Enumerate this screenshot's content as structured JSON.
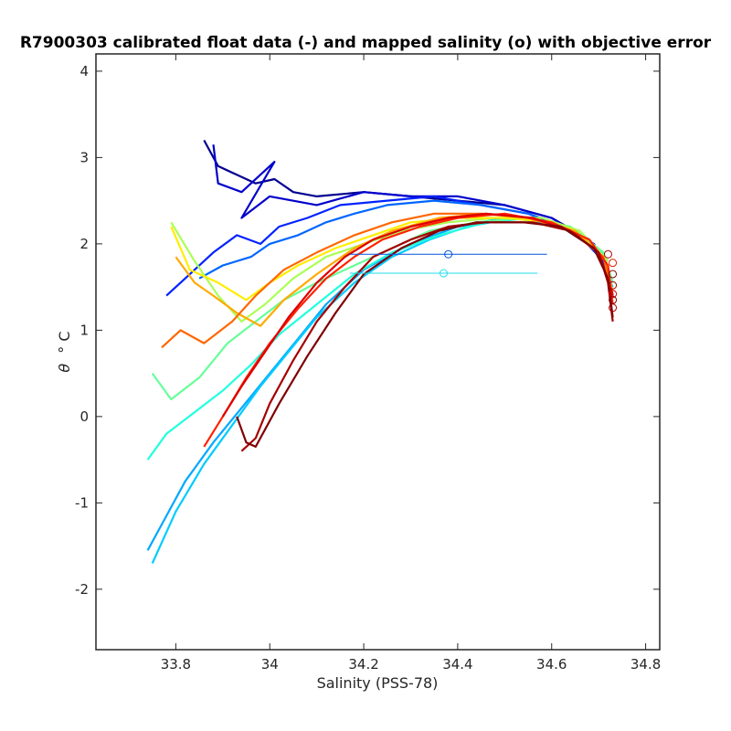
{
  "chart_data": {
    "type": "line",
    "title": "R7900303 calibrated float data (-) and mapped salinity (o) with objective error",
    "xlabel": "Salinity (PSS-78)",
    "ylabel_symbol": "θ",
    "ylabel_unit": "° C",
    "xlim": [
      33.63,
      34.83
    ],
    "ylim": [
      -2.7,
      4.2
    ],
    "x_ticks": [
      33.8,
      34,
      34.2,
      34.4,
      34.6,
      34.8
    ],
    "x_tick_labels": [
      "33.8",
      "34",
      "34.2",
      "34.4",
      "34.6",
      "34.8"
    ],
    "y_ticks": [
      -2,
      -1,
      0,
      1,
      2,
      3,
      4
    ],
    "y_tick_labels": [
      "-2",
      "-1",
      "0",
      "1",
      "2",
      "3",
      "4"
    ],
    "grid": false,
    "legend": "none",
    "colormap": "jet (profile index: blue = early, dark red = late)",
    "series": [
      {
        "color": "#00008f",
        "x": [
          33.86,
          33.87,
          33.89,
          33.93,
          33.97,
          34.01,
          34.05,
          34.1,
          34.2,
          34.3,
          34.4,
          34.5,
          34.6,
          34.68,
          34.72,
          34.73
        ],
        "y": [
          3.2,
          3.1,
          2.9,
          2.8,
          2.7,
          2.75,
          2.6,
          2.55,
          2.6,
          2.55,
          2.5,
          2.45,
          2.3,
          2.05,
          1.7,
          1.4
        ]
      },
      {
        "color": "#0000cc",
        "x": [
          33.88,
          33.89,
          33.94,
          34.01,
          33.94,
          34.0,
          34.1,
          34.2,
          34.3,
          34.4,
          34.5,
          34.6,
          34.69,
          34.72,
          34.73
        ],
        "y": [
          3.15,
          2.7,
          2.6,
          2.95,
          2.3,
          2.55,
          2.45,
          2.6,
          2.55,
          2.55,
          2.45,
          2.3,
          2.0,
          1.7,
          1.4
        ]
      },
      {
        "color": "#0022ff",
        "x": [
          33.78,
          33.82,
          33.88,
          33.93,
          33.98,
          34.02,
          34.08,
          34.15,
          34.25,
          34.35,
          34.45,
          34.55,
          34.65,
          34.71,
          34.73
        ],
        "y": [
          1.4,
          1.6,
          1.9,
          2.1,
          2.0,
          2.2,
          2.3,
          2.45,
          2.5,
          2.55,
          2.45,
          2.35,
          2.15,
          1.8,
          1.4
        ]
      },
      {
        "color": "#0066ff",
        "x": [
          33.85,
          33.9,
          33.96,
          34.0,
          34.06,
          34.12,
          34.18,
          34.25,
          34.35,
          34.45,
          34.55,
          34.65,
          34.71,
          34.73
        ],
        "y": [
          1.6,
          1.75,
          1.85,
          2.0,
          2.1,
          2.25,
          2.35,
          2.45,
          2.5,
          2.45,
          2.35,
          2.15,
          1.85,
          1.45
        ]
      },
      {
        "color": "#00a8ff",
        "x": [
          33.74,
          33.77,
          33.82,
          33.88,
          33.94,
          34.0,
          34.06,
          34.12,
          34.2,
          34.3,
          34.4,
          34.5,
          34.6,
          34.68,
          34.72
        ],
        "y": [
          -1.55,
          -1.25,
          -0.75,
          -0.3,
          0.1,
          0.5,
          0.9,
          1.3,
          1.7,
          2.0,
          2.2,
          2.3,
          2.25,
          2.05,
          1.8
        ]
      },
      {
        "color": "#00ccff",
        "x": [
          33.75,
          33.8,
          33.86,
          33.92,
          33.98,
          34.04,
          34.1,
          34.18,
          34.26,
          34.34,
          34.42,
          34.52,
          34.62,
          34.69,
          34.73
        ],
        "y": [
          -1.7,
          -1.1,
          -0.55,
          -0.1,
          0.35,
          0.75,
          1.15,
          1.55,
          1.85,
          2.05,
          2.2,
          2.3,
          2.2,
          1.95,
          1.5
        ]
      },
      {
        "color": "#22ffdd",
        "x": [
          33.74,
          33.78,
          33.84,
          33.9,
          33.96,
          34.02,
          34.1,
          34.18,
          34.26,
          34.36,
          34.46,
          34.56,
          34.66,
          34.72
        ],
        "y": [
          -0.5,
          -0.2,
          0.05,
          0.3,
          0.6,
          0.95,
          1.3,
          1.65,
          1.9,
          2.1,
          2.25,
          2.3,
          2.15,
          1.8
        ]
      },
      {
        "color": "#66ff99",
        "x": [
          33.75,
          33.79,
          33.85,
          33.91,
          33.97,
          34.03,
          34.1,
          34.18,
          34.26,
          34.34,
          34.44,
          34.54,
          34.64,
          34.71,
          34.73
        ],
        "y": [
          0.5,
          0.2,
          0.45,
          0.85,
          1.1,
          1.35,
          1.55,
          1.75,
          1.95,
          2.15,
          2.25,
          2.3,
          2.2,
          1.9,
          1.55
        ]
      },
      {
        "color": "#aaff55",
        "x": [
          33.79,
          33.84,
          33.89,
          33.94,
          33.99,
          34.05,
          34.12,
          34.2,
          34.28,
          34.38,
          34.48,
          34.58,
          34.66,
          34.72
        ],
        "y": [
          2.25,
          1.8,
          1.4,
          1.1,
          1.3,
          1.6,
          1.85,
          2.0,
          2.15,
          2.25,
          2.3,
          2.3,
          2.15,
          1.8
        ]
      },
      {
        "color": "#ffee00",
        "x": [
          33.79,
          33.83,
          33.89,
          33.95,
          34.0,
          34.06,
          34.14,
          34.22,
          34.3,
          34.4,
          34.5,
          34.6,
          34.68,
          34.72
        ],
        "y": [
          2.2,
          1.7,
          1.55,
          1.35,
          1.55,
          1.75,
          1.95,
          2.1,
          2.25,
          2.3,
          2.3,
          2.25,
          2.05,
          1.75
        ]
      },
      {
        "color": "#ffaa00",
        "x": [
          33.8,
          33.84,
          33.88,
          33.93,
          33.98,
          34.03,
          34.1,
          34.18,
          34.26,
          34.36,
          34.46,
          34.56,
          34.65,
          34.71,
          34.73
        ],
        "y": [
          1.85,
          1.55,
          1.4,
          1.2,
          1.05,
          1.35,
          1.65,
          1.95,
          2.15,
          2.3,
          2.35,
          2.3,
          2.15,
          1.85,
          1.45
        ]
      },
      {
        "color": "#ff6600",
        "x": [
          33.77,
          33.81,
          33.86,
          33.92,
          33.97,
          34.03,
          34.1,
          34.18,
          34.26,
          34.35,
          34.45,
          34.55,
          34.64,
          34.71,
          34.73
        ],
        "y": [
          0.8,
          1.0,
          0.85,
          1.1,
          1.4,
          1.7,
          1.9,
          2.1,
          2.25,
          2.35,
          2.35,
          2.3,
          2.15,
          1.85,
          1.4
        ]
      },
      {
        "color": "#ff2200",
        "x": [
          33.86,
          33.9,
          33.95,
          34.0,
          34.06,
          34.12,
          34.18,
          34.24,
          34.32,
          34.4,
          34.5,
          34.6,
          34.68,
          34.72,
          34.73
        ],
        "y": [
          -0.35,
          0.0,
          0.45,
          0.85,
          1.25,
          1.6,
          1.85,
          2.05,
          2.2,
          2.3,
          2.35,
          2.25,
          2.05,
          1.75,
          1.3
        ]
      },
      {
        "color": "#dd0000",
        "x": [
          33.9,
          33.94,
          33.99,
          34.04,
          34.1,
          34.16,
          34.22,
          34.3,
          34.38,
          34.46,
          34.56,
          34.64,
          34.7,
          34.73
        ],
        "y": [
          0.0,
          0.35,
          0.75,
          1.15,
          1.55,
          1.85,
          2.05,
          2.2,
          2.3,
          2.35,
          2.3,
          2.15,
          1.9,
          1.4
        ]
      },
      {
        "color": "#a50000",
        "x": [
          33.94,
          33.97,
          34.0,
          34.05,
          34.1,
          34.16,
          34.22,
          34.3,
          34.38,
          34.46,
          34.56,
          34.64,
          34.7,
          34.72,
          34.73
        ],
        "y": [
          -0.4,
          -0.25,
          0.15,
          0.65,
          1.1,
          1.5,
          1.85,
          2.05,
          2.2,
          2.25,
          2.25,
          2.15,
          1.9,
          1.55,
          1.1
        ]
      },
      {
        "color": "#800000",
        "x": [
          33.93,
          33.95,
          33.97,
          34.02,
          34.08,
          34.14,
          34.2,
          34.28,
          34.36,
          34.44,
          34.54,
          34.62,
          34.69,
          34.72,
          34.73
        ],
        "y": [
          0.0,
          -0.3,
          -0.35,
          0.15,
          0.7,
          1.2,
          1.65,
          1.95,
          2.15,
          2.25,
          2.25,
          2.2,
          1.95,
          1.6,
          1.15
        ]
      }
    ],
    "mapped_points": [
      {
        "x": 34.38,
        "y": 1.88,
        "err": 0.21,
        "color": "#0055dd"
      },
      {
        "x": 34.37,
        "y": 1.66,
        "err": 0.2,
        "color": "#22ddee"
      },
      {
        "x": 34.72,
        "y": 1.88,
        "err": 0.0,
        "color": "#a50000"
      },
      {
        "x": 34.73,
        "y": 1.78,
        "err": 0.0,
        "color": "#dd2200"
      },
      {
        "x": 34.73,
        "y": 1.65,
        "err": 0.0,
        "color": "#800000"
      },
      {
        "x": 34.73,
        "y": 1.52,
        "err": 0.0,
        "color": "#a50000"
      },
      {
        "x": 34.73,
        "y": 1.42,
        "err": 0.0,
        "color": "#dd0000"
      },
      {
        "x": 34.73,
        "y": 1.35,
        "err": 0.0,
        "color": "#800000"
      },
      {
        "x": 34.73,
        "y": 1.26,
        "err": 0.0,
        "color": "#a50000"
      }
    ]
  }
}
